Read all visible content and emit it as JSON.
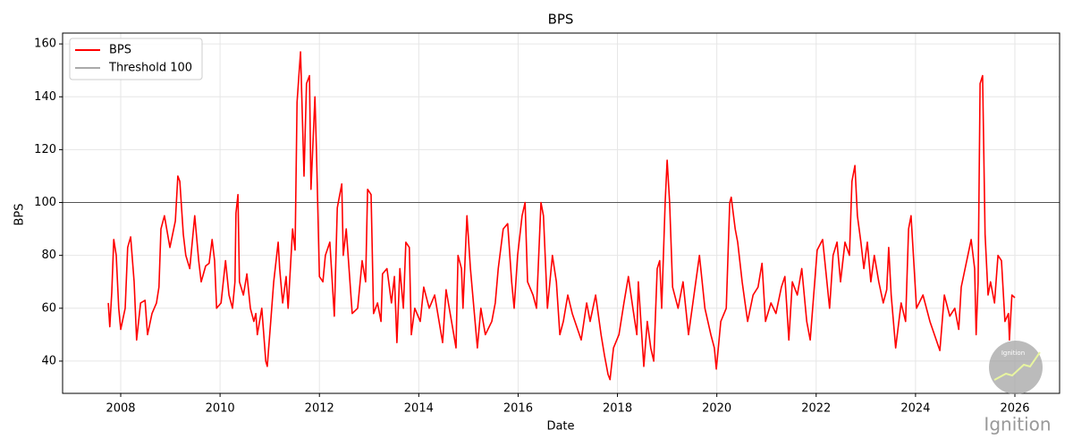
{
  "chart_data": {
    "type": "line",
    "title": "BPS",
    "xlabel": "Date",
    "ylabel": "BPS",
    "x": [
      2007.75,
      2007.78,
      2007.82,
      2007.86,
      2007.91,
      2007.96,
      2008.0,
      2008.09,
      2008.14,
      2008.2,
      2008.27,
      2008.32,
      2008.4,
      2008.49,
      2008.54,
      2008.63,
      2008.72,
      2008.77,
      2008.81,
      2008.88,
      2008.99,
      2009.1,
      2009.15,
      2009.19,
      2009.26,
      2009.31,
      2009.39,
      2009.49,
      2009.57,
      2009.62,
      2009.71,
      2009.78,
      2009.84,
      2009.89,
      2009.93,
      2010.02,
      2010.11,
      2010.18,
      2010.25,
      2010.3,
      2010.32,
      2010.36,
      2010.39,
      2010.47,
      2010.54,
      2010.61,
      2010.68,
      2010.72,
      2010.75,
      2010.84,
      2010.92,
      2010.95,
      2011.02,
      2011.08,
      2011.17,
      2011.2,
      2011.26,
      2011.33,
      2011.37,
      2011.46,
      2011.51,
      2011.55,
      2011.62,
      2011.69,
      2011.74,
      2011.8,
      2011.83,
      2011.91,
      2011.94,
      2012.0,
      2012.07,
      2012.12,
      2012.21,
      2012.3,
      2012.36,
      2012.45,
      2012.48,
      2012.54,
      2012.66,
      2012.77,
      2012.86,
      2012.93,
      2012.97,
      2013.04,
      2013.09,
      2013.17,
      2013.24,
      2013.27,
      2013.36,
      2013.45,
      2013.51,
      2013.56,
      2013.62,
      2013.69,
      2013.74,
      2013.81,
      2013.85,
      2013.92,
      2014.03,
      2014.1,
      2014.21,
      2014.32,
      2014.48,
      2014.55,
      2014.66,
      2014.75,
      2014.79,
      2014.86,
      2014.89,
      2014.97,
      2015.04,
      2015.11,
      2015.18,
      2015.25,
      2015.34,
      2015.47,
      2015.54,
      2015.6,
      2015.7,
      2015.79,
      2015.87,
      2015.92,
      2015.99,
      2016.08,
      2016.14,
      2016.19,
      2016.3,
      2016.37,
      2016.46,
      2016.51,
      2016.59,
      2016.69,
      2016.77,
      2016.84,
      2016.91,
      2017.0,
      2017.09,
      2017.27,
      2017.38,
      2017.45,
      2017.56,
      2017.67,
      2017.74,
      2017.81,
      2017.85,
      2017.92,
      2018.03,
      2018.13,
      2018.22,
      2018.31,
      2018.39,
      2018.42,
      2018.53,
      2018.6,
      2018.67,
      2018.73,
      2018.8,
      2018.85,
      2018.89,
      2018.96,
      2019.0,
      2019.05,
      2019.11,
      2019.22,
      2019.32,
      2019.43,
      2019.54,
      2019.65,
      2019.76,
      2019.88,
      2019.95,
      2019.99,
      2020.08,
      2020.19,
      2020.26,
      2020.29,
      2020.37,
      2020.42,
      2020.51,
      2020.62,
      2020.73,
      2020.83,
      2020.91,
      2020.98,
      2021.09,
      2021.19,
      2021.3,
      2021.37,
      2021.45,
      2021.52,
      2021.62,
      2021.71,
      2021.81,
      2021.88,
      2021.95,
      2022.02,
      2022.13,
      2022.2,
      2022.27,
      2022.34,
      2022.42,
      2022.49,
      2022.58,
      2022.67,
      2022.72,
      2022.78,
      2022.83,
      2022.9,
      2022.96,
      2023.03,
      2023.1,
      2023.17,
      2023.26,
      2023.35,
      2023.42,
      2023.46,
      2023.51,
      2023.6,
      2023.71,
      2023.8,
      2023.86,
      2023.91,
      2024.02,
      2024.15,
      2024.29,
      2024.49,
      2024.58,
      2024.69,
      2024.79,
      2024.87,
      2024.92,
      2025.12,
      2025.19,
      2025.22,
      2025.26,
      2025.3,
      2025.35,
      2025.4,
      2025.46,
      2025.51,
      2025.59,
      2025.66,
      2025.73,
      2025.8,
      2025.87,
      2025.89,
      2025.94,
      2026.0
    ],
    "series": [
      {
        "name": "BPS",
        "color": "#ff0000",
        "values": [
          62,
          53,
          66,
          86,
          80,
          60,
          52,
          60,
          83,
          87,
          70,
          48,
          62,
          63,
          50,
          58,
          62,
          68,
          90,
          95,
          83,
          93,
          110,
          108,
          88,
          80,
          75,
          95,
          78,
          70,
          76,
          77,
          86,
          78,
          60,
          62,
          78,
          65,
          60,
          70,
          96,
          103,
          70,
          65,
          73,
          60,
          55,
          58,
          50,
          60,
          40,
          38,
          55,
          70,
          85,
          75,
          62,
          72,
          60,
          90,
          82,
          138,
          157,
          110,
          145,
          148,
          105,
          140,
          120,
          72,
          70,
          80,
          85,
          57,
          98,
          107,
          80,
          90,
          58,
          60,
          78,
          70,
          105,
          103,
          58,
          62,
          55,
          73,
          75,
          62,
          72,
          47,
          75,
          60,
          85,
          83,
          50,
          60,
          55,
          68,
          60,
          65,
          47,
          67,
          55,
          45,
          80,
          75,
          60,
          95,
          75,
          60,
          45,
          60,
          50,
          55,
          62,
          75,
          90,
          92,
          70,
          60,
          80,
          95,
          100,
          70,
          65,
          60,
          100,
          95,
          60,
          80,
          70,
          50,
          55,
          65,
          58,
          48,
          62,
          55,
          65,
          50,
          42,
          35,
          33,
          45,
          50,
          62,
          72,
          60,
          50,
          70,
          38,
          55,
          45,
          40,
          75,
          78,
          60,
          100,
          116,
          100,
          68,
          60,
          70,
          50,
          65,
          80,
          60,
          50,
          45,
          37,
          55,
          60,
          100,
          102,
          90,
          85,
          70,
          55,
          65,
          68,
          77,
          55,
          62,
          58,
          68,
          72,
          48,
          70,
          65,
          75,
          55,
          48,
          65,
          82,
          86,
          73,
          60,
          80,
          85,
          70,
          85,
          80,
          108,
          114,
          95,
          85,
          75,
          85,
          70,
          80,
          70,
          62,
          67,
          83,
          65,
          45,
          62,
          55,
          90,
          95,
          60,
          65,
          55,
          44,
          65,
          57,
          60,
          52,
          68,
          86,
          75,
          50,
          70,
          145,
          148,
          88,
          65,
          70,
          62,
          80,
          78,
          55,
          58,
          48,
          65,
          64
        ]
      }
    ],
    "threshold": {
      "name": "Threshold 100",
      "value": 100,
      "color": "#555555"
    },
    "xlim": [
      2006.83,
      2026.9
    ],
    "ylim": [
      27.8,
      164.1
    ],
    "xticks": [
      2008,
      2010,
      2012,
      2014,
      2016,
      2018,
      2020,
      2022,
      2024,
      2026
    ],
    "yticks": [
      40,
      60,
      80,
      100,
      120,
      140,
      160
    ],
    "grid": true,
    "legend": "upper left",
    "watermark": "Ignition"
  }
}
